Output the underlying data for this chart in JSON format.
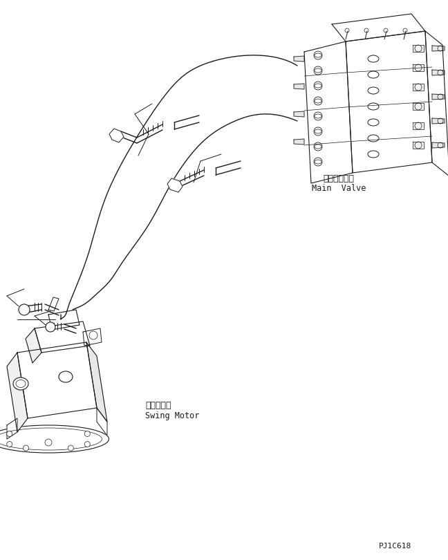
{
  "bg_color": "#ffffff",
  "line_color": "#1a1a1a",
  "title_text": "",
  "main_valve_label_jp": "メインバルブ",
  "main_valve_label_en": "Main  Valve",
  "swing_motor_label_jp": "旋回モータ",
  "swing_motor_label_en": "Swing Motor",
  "part_code": "PJ1C618",
  "lw": 1.0
}
